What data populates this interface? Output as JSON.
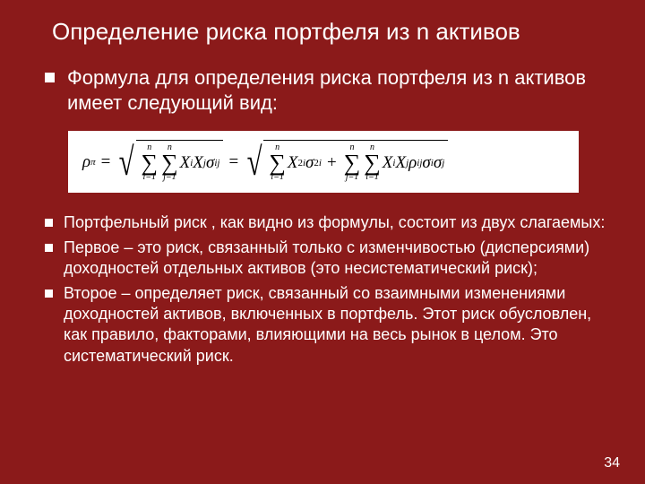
{
  "background_color": "#8b1a1a",
  "text_color": "#ffffff",
  "title": "Определение риска портфеля  из n активов",
  "intro": "Формула для определения риска портфеля из n активов имеет следующий вид:",
  "formula": {
    "lhs_var": "ρ",
    "lhs_sub": "π",
    "eq": "=",
    "sum_top": "n",
    "sum1_bot": "i=1",
    "sum2_bot": "j=1",
    "X": "X",
    "i": "i",
    "j": "j",
    "sigma_small": "σ",
    "ij": "ij",
    "sq": "2",
    "rho": "ρ",
    "plus": "+"
  },
  "bullets": [
    "Портфельный риск , как видно из формулы, состоит  из двух слагаемых:",
    "Первое – это риск, связанный  только с изменчивостью (дисперсиями) доходностей  отдельных активов (это несистематический риск);",
    "Второе – определяет риск, связанный со взаимными изменениями доходностей активов, включенных в портфель. Этот риск обусловлен, как правило, факторами, влияющими на весь рынок в целом. Это систематический риск."
  ],
  "page_number": "34"
}
